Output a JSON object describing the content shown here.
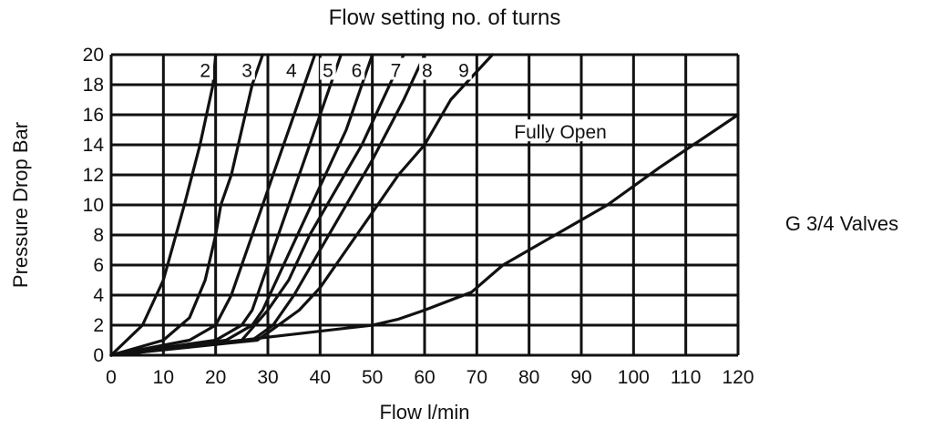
{
  "chart_data": {
    "type": "line",
    "title": "Flow setting no. of turns",
    "xlabel": "Flow l/min",
    "ylabel": "Pressure Drop Bar",
    "side_note": "G 3/4 Valves",
    "xlim": [
      0,
      120
    ],
    "ylim": [
      0,
      20
    ],
    "xticks": [
      0,
      10,
      20,
      30,
      40,
      50,
      60,
      70,
      80,
      90,
      100,
      110,
      120
    ],
    "yticks": [
      0,
      2,
      4,
      6,
      8,
      10,
      12,
      14,
      16,
      18,
      20
    ],
    "grid": true,
    "legend": "none (series labelled directly on curves)",
    "series": [
      {
        "name": "2",
        "points": [
          [
            0,
            0
          ],
          [
            6,
            2
          ],
          [
            10,
            5
          ],
          [
            14,
            10
          ],
          [
            17,
            14
          ],
          [
            19.5,
            18
          ],
          [
            20,
            20
          ]
        ]
      },
      {
        "name": "3",
        "points": [
          [
            0,
            0
          ],
          [
            10,
            1
          ],
          [
            15,
            2.5
          ],
          [
            18,
            5
          ],
          [
            20,
            8
          ],
          [
            21,
            10
          ],
          [
            23,
            12
          ],
          [
            25,
            15
          ],
          [
            27,
            18
          ],
          [
            29,
            20
          ]
        ]
      },
      {
        "name": "4",
        "points": [
          [
            0,
            0
          ],
          [
            15,
            1
          ],
          [
            20,
            2
          ],
          [
            23,
            4
          ],
          [
            25,
            6
          ],
          [
            27,
            8
          ],
          [
            29,
            10
          ],
          [
            31,
            12
          ],
          [
            33,
            14
          ],
          [
            35,
            16
          ],
          [
            37,
            18
          ],
          [
            39,
            20
          ]
        ]
      },
      {
        "name": "5",
        "points": [
          [
            0,
            0
          ],
          [
            20,
            1
          ],
          [
            25,
            2
          ],
          [
            27,
            3
          ],
          [
            30,
            6
          ],
          [
            33,
            9
          ],
          [
            36,
            12
          ],
          [
            39,
            15
          ],
          [
            42,
            18
          ],
          [
            44,
            20
          ]
        ]
      },
      {
        "name": "6",
        "points": [
          [
            0,
            0
          ],
          [
            22,
            1
          ],
          [
            27,
            2
          ],
          [
            29,
            3
          ],
          [
            33,
            6
          ],
          [
            37,
            9
          ],
          [
            41,
            12
          ],
          [
            45,
            15
          ],
          [
            48,
            18
          ],
          [
            50,
            20
          ]
        ]
      },
      {
        "name": "7",
        "points": [
          [
            0,
            0
          ],
          [
            25,
            1
          ],
          [
            30,
            3
          ],
          [
            34,
            5
          ],
          [
            38,
            8
          ],
          [
            43,
            11
          ],
          [
            48,
            14
          ],
          [
            52,
            17
          ],
          [
            56,
            20
          ]
        ]
      },
      {
        "name": "8",
        "points": [
          [
            0,
            0
          ],
          [
            27,
            1
          ],
          [
            31,
            2
          ],
          [
            35,
            4
          ],
          [
            40,
            7
          ],
          [
            45,
            10
          ],
          [
            50,
            13
          ],
          [
            56,
            17
          ],
          [
            60,
            20
          ]
        ]
      },
      {
        "name": "9",
        "points": [
          [
            0,
            0
          ],
          [
            28,
            1
          ],
          [
            30,
            1.5
          ],
          [
            36,
            3
          ],
          [
            40,
            4.5
          ],
          [
            45,
            7
          ],
          [
            50,
            9.5
          ],
          [
            55,
            12
          ],
          [
            60,
            14
          ],
          [
            65,
            17
          ],
          [
            73,
            20
          ]
        ]
      },
      {
        "name": "Fully Open",
        "points": [
          [
            0,
            0
          ],
          [
            30,
            1.2
          ],
          [
            50,
            2
          ],
          [
            55,
            2.4
          ],
          [
            60,
            3
          ],
          [
            69,
            4.2
          ],
          [
            75,
            6
          ],
          [
            85,
            8
          ],
          [
            95,
            10
          ],
          [
            105,
            12.5
          ],
          [
            120,
            16
          ]
        ]
      }
    ],
    "curve_labels": [
      {
        "text": "2",
        "x": 18,
        "y": 19
      },
      {
        "text": "3",
        "x": 26,
        "y": 19
      },
      {
        "text": "4",
        "x": 34.5,
        "y": 19
      },
      {
        "text": "5",
        "x": 41.5,
        "y": 19
      },
      {
        "text": "6",
        "x": 47,
        "y": 19
      },
      {
        "text": "7",
        "x": 54.5,
        "y": 19
      },
      {
        "text": "8",
        "x": 60.5,
        "y": 19
      },
      {
        "text": "9",
        "x": 67.5,
        "y": 19
      },
      {
        "text": "Fully Open",
        "x": 86,
        "y": 14.9
      }
    ]
  }
}
